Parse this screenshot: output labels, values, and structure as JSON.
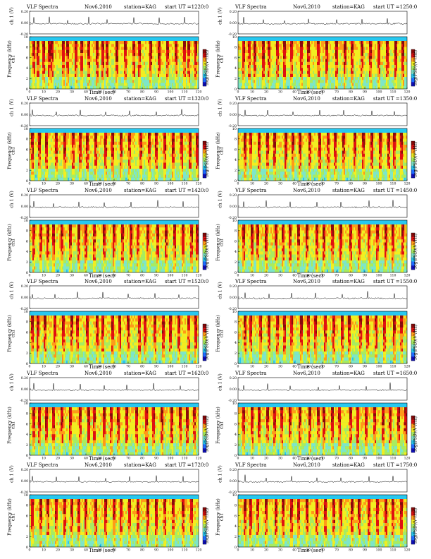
{
  "colors": {
    "spectrum_scale": [
      "#1010c0",
      "#1e6cff",
      "#27c8f0",
      "#7ee6c8",
      "#a8ec60",
      "#f2ee20",
      "#ff9a18",
      "#e01010",
      "#8a0a0a"
    ],
    "background_band": "#27c8f0",
    "waveform": "#000000"
  },
  "chart_data": [
    {
      "type": "heatmap",
      "title": "VLF Spectra",
      "date": "Nov6,2010",
      "station": "station=KAG",
      "start": "start  UT  =1220:0",
      "waveform_ylabel": "ch 1 (V)",
      "channel_label": "ch1",
      "ylabel": "Frequency  (kHz)",
      "xlabel": "Time  (sec)",
      "colorbar_label": "log(PSD)(V²/Hz)",
      "xlim": [
        0,
        120
      ],
      "ylim_khz": [
        0,
        10
      ],
      "waveform_ylim": [
        -0.2,
        0.2
      ],
      "x_ticks": [
        "0",
        "10",
        "20",
        "30",
        "40",
        "50",
        "60",
        "70",
        "80",
        "90",
        "100",
        "110",
        "120"
      ],
      "y_ticks": [
        "0",
        "2",
        "4",
        "6",
        "8",
        "10"
      ],
      "waveform_ticks": [
        "0.20",
        "0.00",
        "-0.20"
      ],
      "colorbar_ticks": [
        "-",
        "-"
      ],
      "burst_times": [
        3,
        6,
        10,
        14,
        16,
        24,
        27,
        33,
        37,
        42,
        48,
        52,
        55,
        62,
        68,
        74,
        78,
        86,
        92,
        98,
        104,
        110,
        113,
        118
      ]
    },
    {
      "type": "heatmap",
      "title": "VLF Spectra",
      "date": "Nov6,2010",
      "station": "station=KAG",
      "start": "start  UT  =1250:0",
      "waveform_ylabel": "ch 1 (V)",
      "channel_label": "ch1",
      "ylabel": "Frequency  (kHz)",
      "xlabel": "Time  (sec)",
      "colorbar_label": "log(PSD)(V²/Hz)",
      "xlim": [
        0,
        120
      ],
      "ylim_khz": [
        0,
        10
      ],
      "waveform_ylim": [
        -0.2,
        0.2
      ],
      "x_ticks": [
        "0",
        "10",
        "20",
        "30",
        "40",
        "50",
        "60",
        "70",
        "80",
        "90",
        "100",
        "110",
        "120"
      ],
      "y_ticks": [
        "0",
        "2",
        "4",
        "6",
        "8",
        "10"
      ],
      "waveform_ticks": [
        "0.20",
        "0.00",
        "-0.20"
      ],
      "colorbar_ticks": [
        "-",
        "-"
      ],
      "burst_times": [
        4,
        8,
        12,
        18,
        22,
        28,
        33,
        38,
        45,
        50,
        57,
        63,
        70,
        76,
        81,
        88,
        94,
        100,
        106,
        112,
        117
      ]
    },
    {
      "type": "heatmap",
      "title": "VLF Spectra",
      "date": "Nov6,2010",
      "station": "station=KAG",
      "start": "start  UT  =1320:0",
      "waveform_ylabel": "ch 1 (V)",
      "channel_label": "ch1",
      "ylabel": "Frequency  (kHz)",
      "xlabel": "Time  (sec)",
      "colorbar_label": "log(PSD)(V²/Hz)",
      "xlim": [
        0,
        120
      ],
      "ylim_khz": [
        0,
        10
      ],
      "waveform_ylim": [
        -0.2,
        0.2
      ],
      "x_ticks": [
        "0",
        "10",
        "20",
        "30",
        "40",
        "50",
        "60",
        "70",
        "80",
        "90",
        "100",
        "110",
        "120"
      ],
      "y_ticks": [
        "0",
        "2",
        "4",
        "6",
        "8",
        "10"
      ],
      "waveform_ticks": [
        "0.20",
        "0.00",
        "-0.20"
      ],
      "colorbar_ticks": [
        "-",
        "-"
      ],
      "burst_times": [
        2,
        7,
        12,
        19,
        25,
        31,
        36,
        41,
        47,
        54,
        59,
        65,
        71,
        79,
        85,
        90,
        96,
        102,
        108,
        114,
        119
      ]
    },
    {
      "type": "heatmap",
      "title": "VLF Spectra",
      "date": "Nov6,2010",
      "station": "station=KAG",
      "start": "start  UT  =1350:0",
      "waveform_ylabel": "ch 1 (V)",
      "channel_label": "ch1",
      "ylabel": "Frequency  (kHz)",
      "xlabel": "Time  (sec)",
      "colorbar_label": "log(PSD)(V²/Hz)",
      "xlim": [
        0,
        120
      ],
      "ylim_khz": [
        0,
        10
      ],
      "waveform_ylim": [
        -0.2,
        0.2
      ],
      "x_ticks": [
        "0",
        "10",
        "20",
        "30",
        "40",
        "50",
        "60",
        "70",
        "80",
        "90",
        "100",
        "110",
        "120"
      ],
      "y_ticks": [
        "0",
        "2",
        "4",
        "6",
        "8",
        "10"
      ],
      "waveform_ticks": [
        "0.20",
        "0.00",
        "-0.20"
      ],
      "colorbar_ticks": [
        "-",
        "-"
      ],
      "burst_times": [
        5,
        9,
        15,
        21,
        26,
        34,
        39,
        44,
        51,
        58,
        64,
        69,
        75,
        83,
        89,
        95,
        101,
        107,
        111,
        116
      ]
    },
    {
      "type": "heatmap",
      "title": "VLF Spectra",
      "date": "Nov6,2010",
      "station": "station=KAG",
      "start": "start  UT  =1420:0",
      "waveform_ylabel": "ch 1 (V)",
      "channel_label": "ch1",
      "ylabel": "Frequency  (kHz)",
      "xlabel": "Time  (sec)",
      "colorbar_label": "log(PSD)(V²/Hz)",
      "xlim": [
        0,
        120
      ],
      "ylim_khz": [
        0,
        10
      ],
      "waveform_ylim": [
        -0.2,
        0.2
      ],
      "x_ticks": [
        "0",
        "10",
        "20",
        "30",
        "40",
        "50",
        "60",
        "70",
        "80",
        "90",
        "100",
        "110",
        "120"
      ],
      "y_ticks": [
        "0",
        "2",
        "4",
        "6",
        "8",
        "10"
      ],
      "waveform_ticks": [
        "0.20",
        "0.00",
        "-0.20"
      ],
      "colorbar_ticks": [
        "-",
        "-"
      ],
      "burst_times": [
        3,
        8,
        13,
        17,
        23,
        29,
        35,
        40,
        46,
        53,
        60,
        66,
        72,
        77,
        84,
        91,
        97,
        103,
        109,
        115,
        119
      ]
    },
    {
      "type": "heatmap",
      "title": "VLF Spectra",
      "date": "Nov6,2010",
      "station": "station=KAG",
      "start": "start  UT  =1450:0",
      "waveform_ylabel": "ch 1 (V)",
      "channel_label": "ch1",
      "ylabel": "Frequency  (kHz)",
      "xlabel": "Time  (sec)",
      "colorbar_label": "log(PSD)(V²/Hz)",
      "xlim": [
        0,
        120
      ],
      "ylim_khz": [
        0,
        10
      ],
      "waveform_ylim": [
        -0.2,
        0.2
      ],
      "x_ticks": [
        "0",
        "10",
        "20",
        "30",
        "40",
        "50",
        "60",
        "70",
        "80",
        "90",
        "100",
        "110",
        "120"
      ],
      "y_ticks": [
        "0",
        "2",
        "4",
        "6",
        "8",
        "10"
      ],
      "waveform_ticks": [
        "0.20",
        "0.00",
        "-0.20"
      ],
      "colorbar_ticks": [
        "-",
        "-"
      ],
      "burst_times": [
        4,
        10,
        14,
        20,
        27,
        32,
        37,
        43,
        49,
        56,
        61,
        67,
        73,
        80,
        86,
        93,
        99,
        105,
        110,
        117
      ]
    },
    {
      "type": "heatmap",
      "title": "VLF Spectra",
      "date": "Nov6,2010",
      "station": "station=KAG",
      "start": "start  UT  =1520:0",
      "waveform_ylabel": "ch 1 (V)",
      "channel_label": "ch1",
      "ylabel": "Frequency  (kHz)",
      "xlabel": "Time  (sec)",
      "colorbar_label": "log(PSD)(V²/Hz)",
      "xlim": [
        0,
        120
      ],
      "ylim_khz": [
        0,
        10
      ],
      "waveform_ylim": [
        -0.2,
        0.2
      ],
      "x_ticks": [
        "0",
        "10",
        "20",
        "30",
        "40",
        "50",
        "60",
        "70",
        "80",
        "90",
        "100",
        "110",
        "120"
      ],
      "y_ticks": [
        "0",
        "2",
        "4",
        "6",
        "8",
        "10"
      ],
      "waveform_ticks": [
        "0.20",
        "0.00",
        "-0.20"
      ],
      "colorbar_ticks": [
        "-",
        "-"
      ],
      "burst_times": [
        2,
        6,
        11,
        18,
        24,
        30,
        34,
        41,
        48,
        52,
        59,
        64,
        70,
        78,
        82,
        89,
        95,
        100,
        106,
        113,
        118
      ]
    },
    {
      "type": "heatmap",
      "title": "VLF Spectra",
      "date": "Nov6,2010",
      "station": "station=KAG",
      "start": "start  UT  =1550:0",
      "waveform_ylabel": "ch 1 (V)",
      "channel_label": "ch1",
      "ylabel": "Frequency  (kHz)",
      "xlabel": "Time  (sec)",
      "colorbar_label": "log(PSD)(V²/Hz)",
      "xlim": [
        0,
        120
      ],
      "ylim_khz": [
        0,
        10
      ],
      "waveform_ylim": [
        -0.2,
        0.2
      ],
      "x_ticks": [
        "0",
        "10",
        "20",
        "30",
        "40",
        "50",
        "60",
        "70",
        "80",
        "90",
        "100",
        "110",
        "120"
      ],
      "y_ticks": [
        "0",
        "2",
        "4",
        "6",
        "8",
        "10"
      ],
      "waveform_ticks": [
        "0.20",
        "0.00",
        "-0.20"
      ],
      "colorbar_ticks": [
        "-",
        "-"
      ],
      "burst_times": [
        5,
        9,
        16,
        22,
        28,
        33,
        38,
        45,
        50,
        55,
        62,
        68,
        74,
        79,
        87,
        92,
        98,
        104,
        111,
        116
      ]
    },
    {
      "type": "heatmap",
      "title": "VLF Spectra",
      "date": "Nov6,2010",
      "station": "station=KAG",
      "start": "start  UT  =1620:0",
      "waveform_ylabel": "ch 1 (V)",
      "channel_label": "ch1",
      "ylabel": "Frequency  (kHz)",
      "xlabel": "Time  (sec)",
      "colorbar_label": "log(PSD)(V²/Hz)",
      "xlim": [
        0,
        120
      ],
      "ylim_khz": [
        0,
        10
      ],
      "waveform_ylim": [
        -0.2,
        0.2
      ],
      "x_ticks": [
        "0",
        "10",
        "20",
        "30",
        "40",
        "50",
        "60",
        "70",
        "80",
        "90",
        "100",
        "110",
        "120"
      ],
      "y_ticks": [
        "0",
        "2",
        "4",
        "6",
        "8",
        "10"
      ],
      "waveform_ticks": [
        "0.20",
        "0.00",
        "-0.20"
      ],
      "colorbar_ticks": [
        "-",
        "-"
      ],
      "burst_times": [
        3,
        7,
        12,
        17,
        23,
        29,
        36,
        42,
        46,
        53,
        58,
        63,
        69,
        76,
        83,
        88,
        94,
        101,
        107,
        112,
        117
      ]
    },
    {
      "type": "heatmap",
      "title": "VLF Spectra",
      "date": "Nov6,2010",
      "station": "station=KAG",
      "start": "start  UT  =1650:0",
      "waveform_ylabel": "ch 1 (V)",
      "channel_label": "ch1",
      "ylabel": "Frequency  (kHz)",
      "xlabel": "Time  (sec)",
      "colorbar_label": "log(PSD)(V²/Hz)",
      "xlim": [
        0,
        120
      ],
      "ylim_khz": [
        0,
        10
      ],
      "waveform_ylim": [
        -0.2,
        0.2
      ],
      "x_ticks": [
        "0",
        "10",
        "20",
        "30",
        "40",
        "50",
        "60",
        "70",
        "80",
        "90",
        "100",
        "110",
        "120"
      ],
      "y_ticks": [
        "0",
        "2",
        "4",
        "6",
        "8",
        "10"
      ],
      "waveform_ticks": [
        "0.20",
        "0.00",
        "-0.20"
      ],
      "colorbar_ticks": [
        "-",
        "-"
      ],
      "burst_times": [
        4,
        10,
        15,
        21,
        26,
        31,
        37,
        44,
        51,
        57,
        61,
        67,
        72,
        80,
        85,
        91,
        97,
        103,
        108,
        114,
        119
      ]
    },
    {
      "type": "heatmap",
      "title": "VLF Spectra",
      "date": "Nov6,2010",
      "station": "station=KAG",
      "start": "start  UT  =1720:0",
      "waveform_ylabel": "ch 1 (V)",
      "channel_label": "ch1",
      "ylabel": "Frequency  (kHz)",
      "xlabel": "Time  (sec)",
      "colorbar_label": "log(PSD)(V²/Hz)",
      "xlim": [
        0,
        120
      ],
      "ylim_khz": [
        0,
        10
      ],
      "waveform_ylim": [
        -0.2,
        0.2
      ],
      "x_ticks": [
        "0",
        "10",
        "20",
        "30",
        "40",
        "50",
        "60",
        "70",
        "80",
        "90",
        "100",
        "110",
        "120"
      ],
      "y_ticks": [
        "0",
        "2",
        "4",
        "6",
        "8",
        "10"
      ],
      "waveform_ticks": [
        "0.20",
        "0.00",
        "-0.20"
      ],
      "colorbar_ticks": [
        "-",
        "-"
      ],
      "burst_times": [
        2,
        8,
        13,
        19,
        25,
        30,
        35,
        40,
        47,
        54,
        60,
        65,
        71,
        77,
        84,
        90,
        96,
        102,
        109,
        115
      ]
    },
    {
      "type": "heatmap",
      "title": "VLF Spectra",
      "date": "Nov6,2010",
      "station": "station=KAG",
      "start": "start  UT  =1750:0",
      "waveform_ylabel": "ch 1 (V)",
      "channel_label": "ch1",
      "ylabel": "Frequency  (kHz)",
      "xlabel": "Time  (sec)",
      "colorbar_label": "log(PSD)(V²/Hz)",
      "xlim": [
        0,
        120
      ],
      "ylim_khz": [
        0,
        10
      ],
      "waveform_ylim": [
        -0.2,
        0.2
      ],
      "x_ticks": [
        "0",
        "10",
        "20",
        "30",
        "40",
        "50",
        "60",
        "70",
        "80",
        "90",
        "100",
        "110",
        "120"
      ],
      "y_ticks": [
        "0",
        "2",
        "4",
        "6",
        "8",
        "10"
      ],
      "waveform_ticks": [
        "0.20",
        "0.00",
        "-0.20"
      ],
      "colorbar_ticks": [
        "-",
        "-"
      ],
      "burst_times": [
        5,
        9,
        14,
        20,
        27,
        32,
        38,
        43,
        49,
        56,
        62,
        68,
        73,
        81,
        86,
        93,
        99,
        105,
        110,
        116
      ]
    }
  ]
}
